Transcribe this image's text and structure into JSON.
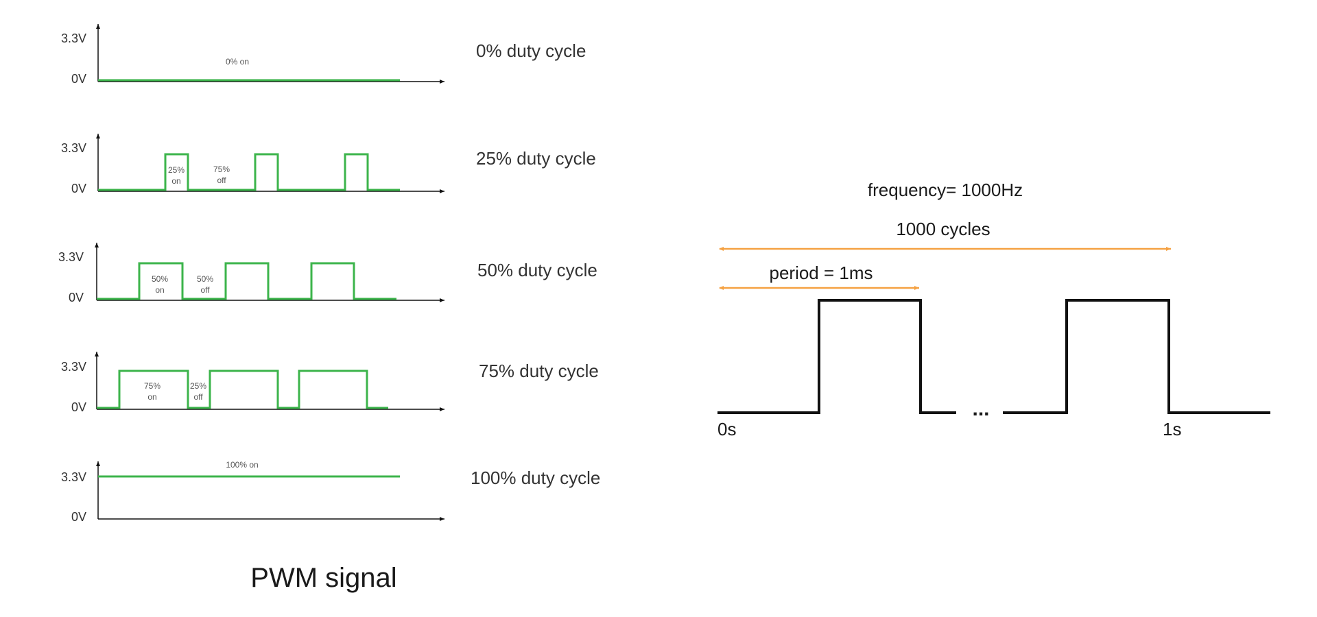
{
  "title": "PWM signal",
  "colors": {
    "signal": "#3cb44b",
    "axis": "#111111",
    "arrow": "#f5a142",
    "square_wave": "#111111",
    "text": "#333333"
  },
  "panels": [
    {
      "duty": 0,
      "label": "0% duty cycle",
      "y_high": "3.3V",
      "y_low": "0V",
      "annotations": [
        "0% on"
      ]
    },
    {
      "duty": 25,
      "label": "25% duty cycle",
      "y_high": "3.3V",
      "y_low": "0V",
      "annotations": [
        "25%",
        "on",
        "75%",
        "off"
      ]
    },
    {
      "duty": 50,
      "label": "50% duty cycle",
      "y_high": "3.3V",
      "y_low": "0V",
      "annotations": [
        "50%",
        "on",
        "50%",
        "off"
      ]
    },
    {
      "duty": 75,
      "label": "75% duty cycle",
      "y_high": "3.3V",
      "y_low": "0V",
      "annotations": [
        "75%",
        "on",
        "25%",
        "off"
      ]
    },
    {
      "duty": 100,
      "label": "100% duty cycle",
      "y_high": "3.3V",
      "y_low": "0V",
      "annotations": [
        "100% on"
      ]
    }
  ],
  "right_diagram": {
    "frequency": "frequency= 1000Hz",
    "cycles": "1000 cycles",
    "period": "period = 1ms",
    "ellipsis": "...",
    "start": "0s",
    "end": "1s"
  }
}
